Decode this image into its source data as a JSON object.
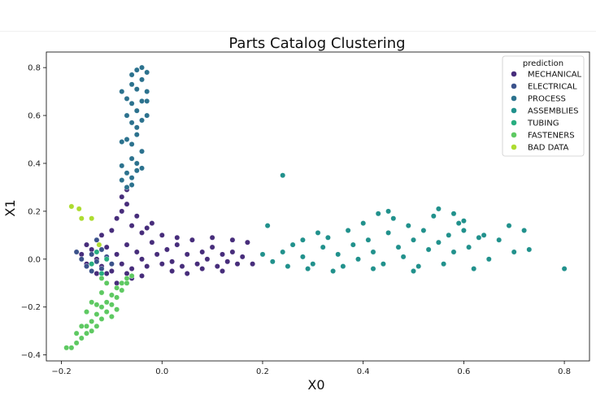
{
  "chart_data": {
    "type": "scatter",
    "title": "Parts Catalog Clustering",
    "xlabel": "X0",
    "ylabel": "X1",
    "xlim": [
      -0.23,
      0.85
    ],
    "ylim": [
      -0.425,
      0.865
    ],
    "xticks": [
      -0.2,
      0.0,
      0.2,
      0.4,
      0.6,
      0.8
    ],
    "xtick_labels": [
      "−0.2",
      "0.0",
      "0.2",
      "0.4",
      "0.6",
      "0.8"
    ],
    "yticks": [
      -0.4,
      -0.2,
      0.0,
      0.2,
      0.4,
      0.6,
      0.8
    ],
    "ytick_labels": [
      "−0.4",
      "−0.2",
      "0.0",
      "0.2",
      "0.4",
      "0.6",
      "0.8"
    ],
    "grid": false,
    "legend": {
      "title": "prediction",
      "placement": "top-right"
    },
    "series": [
      {
        "name": "MECHANICAL",
        "color": "#472d7b",
        "points": [
          [
            -0.16,
            0.02
          ],
          [
            -0.15,
            -0.02
          ],
          [
            -0.14,
            0.04
          ],
          [
            -0.13,
            0.0
          ],
          [
            -0.12,
            -0.03
          ],
          [
            -0.11,
            0.05
          ],
          [
            -0.1,
            -0.05
          ],
          [
            -0.09,
            0.02
          ],
          [
            -0.08,
            -0.02
          ],
          [
            -0.07,
            0.06
          ],
          [
            -0.06,
            -0.04
          ],
          [
            -0.05,
            0.03
          ],
          [
            -0.04,
            0.0
          ],
          [
            -0.03,
            -0.03
          ],
          [
            -0.02,
            0.07
          ],
          [
            -0.01,
            0.02
          ],
          [
            0.0,
            -0.02
          ],
          [
            0.01,
            0.04
          ],
          [
            0.02,
            -0.01
          ],
          [
            0.03,
            0.06
          ],
          [
            0.04,
            -0.03
          ],
          [
            0.05,
            0.02
          ],
          [
            0.06,
            0.08
          ],
          [
            0.07,
            -0.02
          ],
          [
            0.08,
            0.03
          ],
          [
            0.09,
            0.0
          ],
          [
            0.1,
            0.05
          ],
          [
            0.11,
            -0.03
          ],
          [
            0.12,
            0.02
          ],
          [
            0.13,
            -0.01
          ],
          [
            0.14,
            0.03
          ],
          [
            0.15,
            -0.02
          ],
          [
            0.16,
            0.01
          ],
          [
            0.17,
            0.07
          ],
          [
            0.18,
            -0.02
          ],
          [
            -0.12,
            0.1
          ],
          [
            -0.1,
            0.12
          ],
          [
            -0.09,
            0.17
          ],
          [
            -0.08,
            0.2
          ],
          [
            -0.08,
            0.26
          ],
          [
            -0.07,
            0.29
          ],
          [
            -0.07,
            0.23
          ],
          [
            -0.06,
            0.14
          ],
          [
            -0.05,
            0.18
          ],
          [
            -0.04,
            0.11
          ],
          [
            -0.03,
            0.13
          ],
          [
            -0.02,
            0.15
          ],
          [
            -0.06,
            -0.08
          ],
          [
            -0.09,
            -0.1
          ],
          [
            -0.11,
            -0.06
          ],
          [
            -0.07,
            -0.06
          ],
          [
            -0.04,
            -0.07
          ],
          [
            0.02,
            -0.05
          ],
          [
            0.05,
            -0.06
          ],
          [
            0.08,
            -0.04
          ],
          [
            0.12,
            -0.05
          ],
          [
            0.0,
            0.1
          ],
          [
            0.03,
            0.09
          ],
          [
            -0.13,
            -0.06
          ],
          [
            -0.15,
            0.06
          ],
          [
            0.1,
            0.09
          ],
          [
            0.14,
            0.08
          ]
        ]
      },
      {
        "name": "ELECTRICAL",
        "color": "#3b528b",
        "points": [
          [
            -0.17,
            0.03
          ],
          [
            -0.16,
            0.0
          ],
          [
            -0.15,
            -0.03
          ],
          [
            -0.14,
            0.02
          ],
          [
            -0.13,
            -0.01
          ],
          [
            -0.12,
            0.04
          ],
          [
            -0.11,
            0.01
          ],
          [
            -0.1,
            -0.02
          ],
          [
            -0.13,
            0.08
          ],
          [
            -0.14,
            -0.05
          ],
          [
            -0.12,
            -0.04
          ]
        ]
      },
      {
        "name": "PROCESS",
        "color": "#2c728e",
        "points": [
          [
            -0.06,
            0.77
          ],
          [
            -0.05,
            0.79
          ],
          [
            -0.04,
            0.8
          ],
          [
            -0.03,
            0.78
          ],
          [
            -0.06,
            0.73
          ],
          [
            -0.05,
            0.71
          ],
          [
            -0.04,
            0.75
          ],
          [
            -0.03,
            0.7
          ],
          [
            -0.07,
            0.67
          ],
          [
            -0.06,
            0.65
          ],
          [
            -0.05,
            0.62
          ],
          [
            -0.04,
            0.66
          ],
          [
            -0.03,
            0.6
          ],
          [
            -0.06,
            0.57
          ],
          [
            -0.05,
            0.55
          ],
          [
            -0.04,
            0.58
          ],
          [
            -0.07,
            0.5
          ],
          [
            -0.06,
            0.48
          ],
          [
            -0.05,
            0.52
          ],
          [
            -0.04,
            0.45
          ],
          [
            -0.06,
            0.42
          ],
          [
            -0.05,
            0.4
          ],
          [
            -0.04,
            0.38
          ],
          [
            -0.07,
            0.36
          ],
          [
            -0.06,
            0.34
          ],
          [
            -0.05,
            0.37
          ],
          [
            -0.08,
            0.39
          ],
          [
            -0.08,
            0.33
          ],
          [
            -0.07,
            0.3
          ],
          [
            -0.06,
            0.31
          ],
          [
            -0.07,
            0.6
          ],
          [
            -0.08,
            0.7
          ],
          [
            -0.03,
            0.66
          ],
          [
            -0.08,
            0.49
          ]
        ]
      },
      {
        "name": "ASSEMBLIES",
        "color": "#21918c",
        "points": [
          [
            0.2,
            0.02
          ],
          [
            0.22,
            -0.01
          ],
          [
            0.24,
            0.03
          ],
          [
            0.25,
            -0.03
          ],
          [
            0.26,
            0.06
          ],
          [
            0.28,
            0.01
          ],
          [
            0.3,
            -0.02
          ],
          [
            0.32,
            0.05
          ],
          [
            0.33,
            0.09
          ],
          [
            0.35,
            0.02
          ],
          [
            0.36,
            -0.03
          ],
          [
            0.37,
            0.12
          ],
          [
            0.38,
            0.06
          ],
          [
            0.39,
            0.0
          ],
          [
            0.4,
            0.15
          ],
          [
            0.41,
            0.08
          ],
          [
            0.42,
            0.03
          ],
          [
            0.43,
            0.19
          ],
          [
            0.44,
            -0.02
          ],
          [
            0.45,
            0.11
          ],
          [
            0.46,
            0.17
          ],
          [
            0.47,
            0.05
          ],
          [
            0.48,
            0.01
          ],
          [
            0.49,
            0.14
          ],
          [
            0.5,
            0.08
          ],
          [
            0.51,
            -0.03
          ],
          [
            0.52,
            0.12
          ],
          [
            0.53,
            0.04
          ],
          [
            0.54,
            0.18
          ],
          [
            0.55,
            0.07
          ],
          [
            0.56,
            -0.02
          ],
          [
            0.57,
            0.1
          ],
          [
            0.58,
            0.03
          ],
          [
            0.59,
            0.15
          ],
          [
            0.6,
            0.12
          ],
          [
            0.61,
            0.05
          ],
          [
            0.62,
            -0.04
          ],
          [
            0.63,
            0.09
          ],
          [
            0.64,
            0.1
          ],
          [
            0.65,
            0.0
          ],
          [
            0.67,
            0.08
          ],
          [
            0.69,
            0.14
          ],
          [
            0.7,
            0.03
          ],
          [
            0.72,
            0.12
          ],
          [
            0.73,
            0.04
          ],
          [
            0.8,
            -0.04
          ],
          [
            0.24,
            0.35
          ],
          [
            0.21,
            0.14
          ],
          [
            0.28,
            0.08
          ],
          [
            0.31,
            0.11
          ],
          [
            0.29,
            -0.04
          ],
          [
            0.34,
            -0.05
          ],
          [
            0.42,
            -0.04
          ],
          [
            0.5,
            -0.05
          ],
          [
            0.45,
            0.2
          ],
          [
            0.55,
            0.21
          ],
          [
            0.58,
            0.19
          ],
          [
            0.6,
            0.16
          ]
        ]
      },
      {
        "name": "TUBING",
        "color": "#28ae80",
        "points": [
          [
            -0.14,
            -0.02
          ],
          [
            -0.13,
            0.03
          ],
          [
            -0.12,
            -0.06
          ],
          [
            -0.11,
            0.0
          ]
        ]
      },
      {
        "name": "FASTENERS",
        "color": "#5ec962",
        "points": [
          [
            -0.18,
            -0.37
          ],
          [
            -0.17,
            -0.35
          ],
          [
            -0.16,
            -0.33
          ],
          [
            -0.15,
            -0.31
          ],
          [
            -0.15,
            -0.28
          ],
          [
            -0.14,
            -0.3
          ],
          [
            -0.14,
            -0.26
          ],
          [
            -0.13,
            -0.28
          ],
          [
            -0.13,
            -0.23
          ],
          [
            -0.12,
            -0.25
          ],
          [
            -0.12,
            -0.2
          ],
          [
            -0.11,
            -0.22
          ],
          [
            -0.11,
            -0.18
          ],
          [
            -0.1,
            -0.19
          ],
          [
            -0.1,
            -0.15
          ],
          [
            -0.09,
            -0.16
          ],
          [
            -0.09,
            -0.12
          ],
          [
            -0.08,
            -0.13
          ],
          [
            -0.08,
            -0.1
          ],
          [
            -0.07,
            -0.1
          ],
          [
            -0.07,
            -0.08
          ],
          [
            -0.06,
            -0.07
          ],
          [
            -0.12,
            -0.08
          ],
          [
            -0.11,
            -0.1
          ],
          [
            -0.13,
            -0.19
          ],
          [
            -0.15,
            -0.22
          ],
          [
            -0.14,
            -0.18
          ],
          [
            -0.12,
            -0.14
          ],
          [
            -0.16,
            -0.28
          ],
          [
            -0.17,
            -0.31
          ],
          [
            -0.19,
            -0.37
          ],
          [
            -0.1,
            -0.24
          ],
          [
            -0.09,
            -0.21
          ]
        ]
      },
      {
        "name": "BAD DATA",
        "color": "#addc30",
        "points": [
          [
            -0.18,
            0.22
          ],
          [
            -0.165,
            0.21
          ],
          [
            -0.16,
            0.17
          ],
          [
            -0.14,
            0.17
          ],
          [
            -0.125,
            0.06
          ]
        ]
      }
    ]
  }
}
